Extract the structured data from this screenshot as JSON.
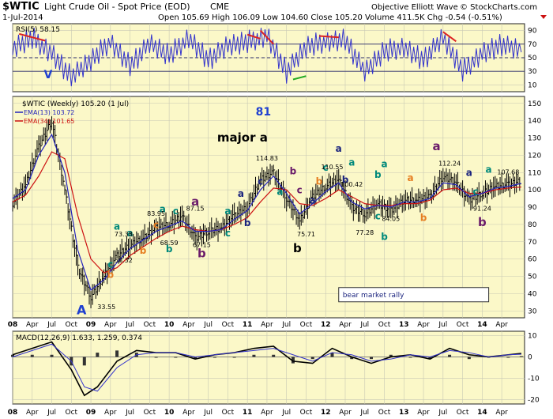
{
  "header": {
    "symbol": "$WTIC",
    "name": "Light Crude Oil - Spot Price (EOD)",
    "exchange": "CME",
    "date": "1-Jul-2014",
    "source": "Objective Elliott Wave",
    "copyright": "© StockCharts.com",
    "quote": "Open 105.69  High 106.09  Low 104.60  Close 105.20  Volume 411.5K  Chg -0.54 (-0.51%)"
  },
  "colors": {
    "plot_bg": "#fbf8c8",
    "grid": "#c8c8b4",
    "price_bars": "#000000",
    "ema13": "#2222bb",
    "ema34": "#cc1111",
    "rsi": "#3333cc",
    "macd": "#000000",
    "signal": "#3333cc",
    "histogram": "#333333",
    "wave_navy": "#1a237e",
    "wave_teal": "#00897b",
    "wave_orange": "#e67e22",
    "wave_purple": "#6a1b6a",
    "wave_blue": "#1f3fd0",
    "trend_red": "#dd2222",
    "trend_green": "#22aa22"
  },
  "chart_data": [
    {
      "type": "line",
      "panel": "rsi",
      "title": "RSI(5) 58.15",
      "ylim": [
        0,
        100
      ],
      "yticks": [
        "10",
        "30",
        "50",
        "70",
        "90"
      ],
      "levels": [
        30,
        50,
        70
      ],
      "x": [
        "2008-01",
        "2008-04",
        "2008-07",
        "2008-10",
        "2009-01",
        "2009-04",
        "2009-07",
        "2009-10",
        "2010-01",
        "2010-04",
        "2010-07",
        "2010-10",
        "2011-01",
        "2011-04",
        "2011-07",
        "2011-10",
        "2012-01",
        "2012-04",
        "2012-07",
        "2012-10",
        "2013-01",
        "2013-04",
        "2013-07",
        "2013-10",
        "2014-01",
        "2014-04",
        "2014-07"
      ],
      "values": [
        62,
        78,
        58,
        22,
        44,
        74,
        40,
        70,
        52,
        80,
        48,
        66,
        72,
        84,
        30,
        64,
        74,
        78,
        28,
        58,
        66,
        48,
        78,
        30,
        58,
        70,
        58
      ],
      "trendlines": [
        {
          "color": "red",
          "x": [
            "2008-02",
            "2008-06"
          ],
          "y": [
            85,
            75
          ]
        },
        {
          "color": "red",
          "x": [
            "2011-01",
            "2011-03"
          ],
          "y": [
            84,
            78
          ]
        },
        {
          "color": "red",
          "x": [
            "2011-03",
            "2011-05"
          ],
          "y": [
            90,
            70
          ]
        },
        {
          "color": "red",
          "x": [
            "2011-12",
            "2012-03"
          ],
          "y": [
            82,
            80
          ]
        },
        {
          "color": "red",
          "x": [
            "2013-07",
            "2013-09"
          ],
          "y": [
            88,
            74
          ]
        },
        {
          "color": "green",
          "x": [
            "2011-08",
            "2011-10"
          ],
          "y": [
            18,
            23
          ]
        }
      ]
    },
    {
      "type": "ohlc",
      "panel": "price",
      "title": "$WTIC (Weekly) 105.20 (1 Jul)",
      "ylim": [
        26,
        154
      ],
      "yticks": [
        "30",
        "40",
        "50",
        "60",
        "70",
        "80",
        "90",
        "100",
        "110",
        "120",
        "130",
        "140",
        "150"
      ],
      "x": [
        "2008-01",
        "2008-03",
        "2008-05",
        "2008-07",
        "2008-09",
        "2008-11",
        "2009-01",
        "2009-03",
        "2009-05",
        "2009-07",
        "2009-09",
        "2009-11",
        "2010-01",
        "2010-03",
        "2010-05",
        "2010-07",
        "2010-09",
        "2010-11",
        "2011-01",
        "2011-03",
        "2011-05",
        "2011-07",
        "2011-09",
        "2011-11",
        "2012-01",
        "2012-03",
        "2012-05",
        "2012-07",
        "2012-09",
        "2012-11",
        "2013-01",
        "2013-03",
        "2013-05",
        "2013-07",
        "2013-09",
        "2013-11",
        "2014-01",
        "2014-03",
        "2014-05",
        "2014-07"
      ],
      "values": [
        92,
        103,
        125,
        140,
        100,
        55,
        38,
        50,
        62,
        68,
        72,
        78,
        80,
        85,
        72,
        76,
        78,
        85,
        90,
        106,
        110,
        95,
        82,
        96,
        102,
        106,
        90,
        86,
        92,
        88,
        94,
        94,
        96,
        108,
        104,
        94,
        98,
        102,
        103,
        105.2
      ],
      "ema13_label": "EMA(13) 103.72",
      "ema34_label": "EMA(34) 101.65",
      "ema13": [
        95,
        100,
        120,
        132,
        110,
        65,
        42,
        48,
        58,
        66,
        71,
        76,
        79,
        82,
        76,
        76,
        77,
        83,
        88,
        100,
        108,
        98,
        86,
        92,
        99,
        104,
        93,
        89,
        91,
        90,
        93,
        93,
        95,
        104,
        103,
        96,
        98,
        101,
        102,
        103.72
      ],
      "ema34": [
        93,
        97,
        108,
        122,
        118,
        85,
        60,
        52,
        55,
        62,
        67,
        72,
        76,
        79,
        77,
        76,
        77,
        80,
        84,
        93,
        101,
        100,
        92,
        91,
        95,
        100,
        96,
        92,
        91,
        91,
        92,
        92,
        94,
        100,
        101,
        98,
        98,
        100,
        101,
        101.65
      ]
    },
    {
      "type": "line",
      "panel": "macd",
      "title": "MACD(12,26,9) 1.633, 1.259, 0.374",
      "ylim": [
        -22,
        12
      ],
      "yticks": [
        "-20",
        "-10",
        "0",
        "10"
      ],
      "x": [
        "2008-01",
        "2008-04",
        "2008-07",
        "2008-10",
        "2008-12",
        "2009-02",
        "2009-05",
        "2009-08",
        "2009-11",
        "2010-02",
        "2010-05",
        "2010-08",
        "2010-11",
        "2011-02",
        "2011-05",
        "2011-08",
        "2011-11",
        "2012-02",
        "2012-05",
        "2012-08",
        "2012-11",
        "2013-02",
        "2013-05",
        "2013-08",
        "2013-11",
        "2014-02",
        "2014-05",
        "2014-07"
      ],
      "series": [
        {
          "name": "MACD",
          "values": [
            1,
            4,
            7,
            -6,
            -18,
            -14,
            -2,
            3,
            2,
            2,
            -1,
            1,
            2,
            4,
            5,
            -2,
            -3,
            4,
            0,
            -3,
            0,
            1,
            -1,
            4,
            1,
            0,
            1,
            1.633
          ]
        },
        {
          "name": "Signal",
          "values": [
            0,
            3,
            6,
            -2,
            -14,
            -16,
            -5,
            1,
            2,
            2,
            0,
            1,
            2,
            3,
            4,
            1,
            -2,
            2,
            1,
            -2,
            -1,
            1,
            0,
            3,
            2,
            0,
            1,
            1.259
          ]
        }
      ],
      "histogram": [
        1,
        1,
        1,
        -4,
        -4,
        2,
        3,
        2,
        0,
        0,
        -1,
        0,
        0,
        1,
        1,
        -3,
        -1,
        2,
        -1,
        -1,
        1,
        0,
        -1,
        1,
        -1,
        0,
        0,
        0.374
      ]
    }
  ],
  "axis_labels": [
    {
      "t": "08",
      "date": "2008-01"
    },
    {
      "t": "Apr",
      "date": "2008-04"
    },
    {
      "t": "Jul",
      "date": "2008-07"
    },
    {
      "t": "Oct",
      "date": "2008-10"
    },
    {
      "t": "09",
      "date": "2009-01"
    },
    {
      "t": "Apr",
      "date": "2009-04"
    },
    {
      "t": "Jul",
      "date": "2009-07"
    },
    {
      "t": "Oct",
      "date": "2009-10"
    },
    {
      "t": "10",
      "date": "2010-01"
    },
    {
      "t": "Apr",
      "date": "2010-04"
    },
    {
      "t": "Jul",
      "date": "2010-07"
    },
    {
      "t": "Oct",
      "date": "2010-10"
    },
    {
      "t": "11",
      "date": "2011-01"
    },
    {
      "t": "Apr",
      "date": "2011-04"
    },
    {
      "t": "Jul",
      "date": "2011-07"
    },
    {
      "t": "Oct",
      "date": "2011-10"
    },
    {
      "t": "12",
      "date": "2012-01"
    },
    {
      "t": "Apr",
      "date": "2012-04"
    },
    {
      "t": "Jul",
      "date": "2012-07"
    },
    {
      "t": "Oct",
      "date": "2012-10"
    },
    {
      "t": "13",
      "date": "2013-01"
    },
    {
      "t": "Apr",
      "date": "2013-04"
    },
    {
      "t": "Jul",
      "date": "2013-07"
    },
    {
      "t": "Oct",
      "date": "2013-10"
    },
    {
      "t": "14",
      "date": "2014-01"
    },
    {
      "t": "Apr",
      "date": "2014-04"
    }
  ],
  "annotations": {
    "V": {
      "text": "V",
      "date": "2008-07",
      "level": 20,
      "color": "wave_blue"
    },
    "A": {
      "text": "A",
      "date": "2009-01",
      "price": 28,
      "color": "wave_blue"
    },
    "low": {
      "text": "33.55",
      "date": "2009-02",
      "price": 31
    },
    "major_label": {
      "text": "major a",
      "date": "2010-12",
      "price": 128
    },
    "major_num": {
      "text": "81",
      "date": "2011-03",
      "price": 143,
      "color": "wave_blue"
    },
    "b_bold": {
      "text": "b",
      "date": "2011-08",
      "price": 64
    },
    "bear_rally": {
      "text": "bear market rally",
      "date_from": "2012-03",
      "date_to": "2014-02",
      "price": 38
    }
  },
  "wave_labels": [
    {
      "text": "a",
      "date": "2009-05",
      "price": 77,
      "c": "wave_teal"
    },
    {
      "text": "b",
      "date": "2009-04",
      "price": 49,
      "c": "wave_orange"
    },
    {
      "text": "c",
      "date": "2009-04",
      "price": 55,
      "c": "wave_teal"
    },
    {
      "text": "a",
      "date": "2009-07",
      "price": 73,
      "c": "wave_teal"
    },
    {
      "text": "b",
      "date": "2009-09",
      "price": 63,
      "c": "wave_orange"
    },
    {
      "text": "c",
      "date": "2009-11",
      "price": 78,
      "c": "wave_orange"
    },
    {
      "text": "b",
      "date": "2010-01",
      "price": 64,
      "c": "wave_teal"
    },
    {
      "text": "a",
      "date": "2009-12",
      "price": 87,
      "c": "wave_teal"
    },
    {
      "text": "c",
      "date": "2010-02",
      "price": 86,
      "c": "wave_teal"
    },
    {
      "text": "a",
      "date": "2010-05",
      "price": 91,
      "c": "wave_purple",
      "big": true
    },
    {
      "text": "b",
      "date": "2010-06",
      "price": 61,
      "c": "wave_purple",
      "big": true
    },
    {
      "text": "a",
      "date": "2010-10",
      "price": 86,
      "c": "wave_teal"
    },
    {
      "text": "c",
      "date": "2010-10",
      "price": 73,
      "c": "wave_teal"
    },
    {
      "text": "a",
      "date": "2010-12",
      "price": 96,
      "c": "wave_navy"
    },
    {
      "text": "b",
      "date": "2011-01",
      "price": 79,
      "c": "wave_navy"
    },
    {
      "text": "c",
      "date": "2011-03",
      "price": 103,
      "c": "wave_navy"
    },
    {
      "text": "a",
      "date": "2011-06",
      "price": 97,
      "c": "wave_teal"
    },
    {
      "text": "b",
      "date": "2011-08",
      "price": 109,
      "c": "wave_purple"
    },
    {
      "text": "c",
      "date": "2011-09",
      "price": 98,
      "c": "wave_purple"
    },
    {
      "text": "a",
      "date": "2011-11",
      "price": 92,
      "c": "wave_navy"
    },
    {
      "text": "b",
      "date": "2011-12",
      "price": 103,
      "c": "wave_orange"
    },
    {
      "text": "c",
      "date": "2012-01",
      "price": 111,
      "c": "wave_teal"
    },
    {
      "text": "a",
      "date": "2012-03",
      "price": 122,
      "c": "wave_navy"
    },
    {
      "text": "b",
      "date": "2012-04",
      "price": 104,
      "c": "wave_navy"
    },
    {
      "text": "a",
      "date": "2012-05",
      "price": 114,
      "c": "wave_teal"
    },
    {
      "text": "b",
      "date": "2012-09",
      "price": 107,
      "c": "wave_teal"
    },
    {
      "text": "c",
      "date": "2012-09",
      "price": 83,
      "c": "wave_teal"
    },
    {
      "text": "b",
      "date": "2012-10",
      "price": 71,
      "c": "wave_teal"
    },
    {
      "text": "a",
      "date": "2012-10",
      "price": 113,
      "c": "wave_teal"
    },
    {
      "text": "a",
      "date": "2013-02",
      "price": 105,
      "c": "wave_orange"
    },
    {
      "text": "b",
      "date": "2013-04",
      "price": 82,
      "c": "wave_orange"
    },
    {
      "text": "a",
      "date": "2013-06",
      "price": 123,
      "c": "wave_purple",
      "big": true
    },
    {
      "text": "a",
      "date": "2013-11",
      "price": 108,
      "c": "wave_navy"
    },
    {
      "text": "c",
      "date": "2013-12",
      "price": 97,
      "c": "wave_teal"
    },
    {
      "text": "b",
      "date": "2014-01",
      "price": 79,
      "c": "wave_purple",
      "big": true
    },
    {
      "text": "a",
      "date": "2014-02",
      "price": 110,
      "c": "wave_teal"
    }
  ],
  "price_labels": [
    {
      "text": "73.38",
      "date": "2009-06",
      "price": 73
    },
    {
      "text": "58.32",
      "date": "2009-06",
      "price": 58
    },
    {
      "text": "83.95",
      "date": "2009-11",
      "price": 85
    },
    {
      "text": "68.59",
      "date": "2010-01",
      "price": 68
    },
    {
      "text": "87.15",
      "date": "2010-05",
      "price": 88
    },
    {
      "text": "67.15",
      "date": "2010-06",
      "price": 67
    },
    {
      "text": "114.83",
      "date": "2011-04",
      "price": 117
    },
    {
      "text": "75.71",
      "date": "2011-10",
      "price": 73
    },
    {
      "text": "110.55",
      "date": "2012-02",
      "price": 112
    },
    {
      "text": "100.42",
      "date": "2012-05",
      "price": 102
    },
    {
      "text": "77.28",
      "date": "2012-07",
      "price": 74
    },
    {
      "text": "84.05",
      "date": "2012-11",
      "price": 82
    },
    {
      "text": "112.24",
      "date": "2013-08",
      "price": 114
    },
    {
      "text": "91.24",
      "date": "2014-01",
      "price": 88
    },
    {
      "text": "107.68",
      "date": "2014-05",
      "price": 109
    }
  ]
}
